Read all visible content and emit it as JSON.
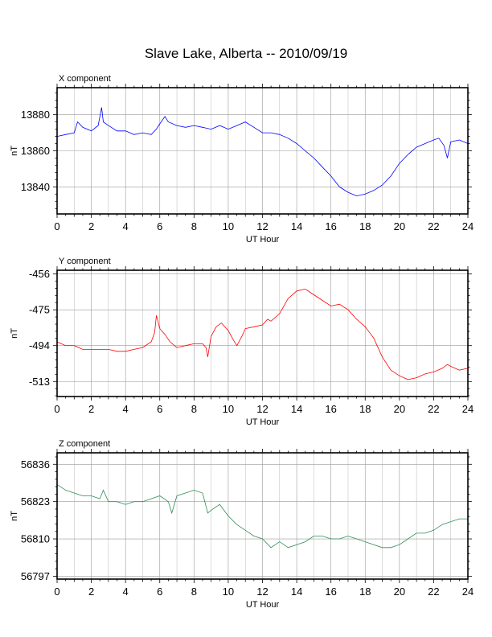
{
  "title": "Slave Lake, Alberta -- 2010/09/19",
  "chart_data": [
    {
      "type": "line",
      "panel_title": "X component",
      "xlabel": "UT Hour",
      "ylabel": "nT",
      "color": "#0000ff",
      "xlim": [
        0,
        24
      ],
      "ylim": [
        13825,
        13895
      ],
      "xticks": [
        0,
        2,
        4,
        6,
        8,
        10,
        12,
        14,
        16,
        18,
        20,
        22,
        24
      ],
      "yticks": [
        13840,
        13860,
        13880
      ],
      "grid": true,
      "x": [
        0,
        0.5,
        1,
        1.2,
        1.5,
        2,
        2.4,
        2.6,
        2.7,
        3,
        3.5,
        4,
        4.5,
        5,
        5.5,
        5.8,
        6,
        6.3,
        6.5,
        7,
        7.5,
        8,
        8.5,
        9,
        9.5,
        10,
        10.5,
        11,
        11.5,
        12,
        12.5,
        13,
        13.5,
        14,
        14.5,
        15,
        15.5,
        16,
        16.5,
        17,
        17.5,
        18,
        18.5,
        19,
        19.5,
        20,
        20.5,
        21,
        21.5,
        22,
        22.3,
        22.6,
        22.8,
        23,
        23.5,
        24
      ],
      "y": [
        13868,
        13869,
        13870,
        13876,
        13873,
        13871,
        13874,
        13884,
        13876,
        13874,
        13871,
        13871,
        13869,
        13870,
        13869,
        13872,
        13875,
        13879,
        13876,
        13874,
        13873,
        13874,
        13873,
        13872,
        13874,
        13872,
        13874,
        13876,
        13873,
        13870,
        13870,
        13869,
        13867,
        13864,
        13860,
        13856,
        13851,
        13846,
        13840,
        13837,
        13835,
        13836,
        13838,
        13841,
        13846,
        13853,
        13858,
        13862,
        13864,
        13866,
        13867,
        13863,
        13856,
        13865,
        13866,
        13864
      ]
    },
    {
      "type": "line",
      "panel_title": "Y component",
      "xlabel": "UT Hour",
      "ylabel": "nT",
      "color": "#ff0000",
      "xlim": [
        0,
        24
      ],
      "ylim": [
        -521,
        -454
      ],
      "xticks": [
        0,
        2,
        4,
        6,
        8,
        10,
        12,
        14,
        16,
        18,
        20,
        22,
        24
      ],
      "yticks": [
        -456,
        -475,
        -494,
        -513
      ],
      "grid": true,
      "x": [
        0,
        0.5,
        1,
        1.5,
        2,
        2.5,
        3,
        3.5,
        4,
        4.5,
        5,
        5.5,
        5.7,
        5.8,
        6,
        6.3,
        6.6,
        7,
        7.5,
        8,
        8.5,
        8.7,
        8.8,
        9,
        9.3,
        9.6,
        10,
        10.3,
        10.5,
        10.8,
        11,
        11.5,
        12,
        12.3,
        12.5,
        13,
        13.5,
        14,
        14.5,
        15,
        15.5,
        16,
        16.5,
        17,
        17.5,
        18,
        18.5,
        19,
        19.5,
        20,
        20.5,
        21,
        21.5,
        22,
        22.5,
        22.8,
        23,
        23.5,
        24
      ],
      "y": [
        -492,
        -494,
        -494,
        -496,
        -496,
        -496,
        -496,
        -497,
        -497,
        -496,
        -495,
        -492,
        -487,
        -478,
        -485,
        -488,
        -492,
        -495,
        -494,
        -493,
        -493,
        -495,
        -500,
        -489,
        -484,
        -482,
        -486,
        -491,
        -494,
        -489,
        -485,
        -484,
        -483,
        -480,
        -481,
        -477,
        -469,
        -465,
        -464,
        -467,
        -470,
        -473,
        -472,
        -475,
        -480,
        -484,
        -490,
        -500,
        -507,
        -510,
        -512,
        -511,
        -509,
        -508,
        -506,
        -504,
        -505,
        -507,
        -506
      ]
    },
    {
      "type": "line",
      "panel_title": "Z component",
      "xlabel": "UT Hour",
      "ylabel": "nT",
      "color": "#2e8b57",
      "xlim": [
        0,
        24
      ],
      "ylim": [
        56796,
        56840
      ],
      "xticks": [
        0,
        2,
        4,
        6,
        8,
        10,
        12,
        14,
        16,
        18,
        20,
        22,
        24
      ],
      "yticks": [
        56797,
        56810,
        56823,
        56836
      ],
      "grid": true,
      "x": [
        0,
        0.5,
        1,
        1.5,
        2,
        2.5,
        2.7,
        3,
        3.5,
        4,
        4.5,
        5,
        5.5,
        6,
        6.5,
        6.7,
        7,
        7.5,
        8,
        8.5,
        8.8,
        9,
        9.5,
        10,
        10.5,
        11,
        11.5,
        12,
        12.5,
        13,
        13.5,
        14,
        14.5,
        15,
        15.5,
        16,
        16.5,
        17,
        17.5,
        18,
        18.5,
        19,
        19.5,
        20,
        20.5,
        21,
        21.5,
        22,
        22.5,
        23,
        23.5,
        24
      ],
      "y": [
        56829,
        56827,
        56826,
        56825,
        56825,
        56824,
        56827,
        56823,
        56823,
        56822,
        56823,
        56823,
        56824,
        56825,
        56823,
        56819,
        56825,
        56826,
        56827,
        56826,
        56819,
        56820,
        56822,
        56818,
        56815,
        56813,
        56811,
        56810,
        56807,
        56809,
        56807,
        56808,
        56809,
        56811,
        56811,
        56810,
        56810,
        56811,
        56810,
        56809,
        56808,
        56807,
        56807,
        56808,
        56810,
        56812,
        56812,
        56813,
        56815,
        56816,
        56817,
        56817
      ]
    }
  ]
}
